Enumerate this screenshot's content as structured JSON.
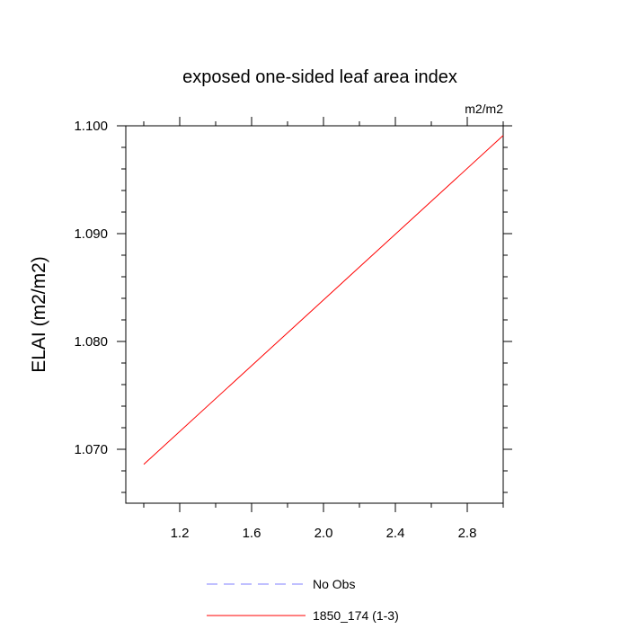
{
  "chart_data": {
    "type": "line",
    "title": "exposed one-sided leaf area index",
    "units_label": "m2/m2",
    "ylabel": "ELAI  (m2/m2)",
    "xlabel": "",
    "xlim": [
      0.9,
      3.0
    ],
    "ylim": [
      1.065,
      1.1
    ],
    "x_major_ticks": [
      1.2,
      1.6,
      2.0,
      2.4,
      2.8
    ],
    "x_tick_labels": [
      "1.2",
      "1.6",
      "2.0",
      "2.4",
      "2.8"
    ],
    "x_minor_ticks": [
      1.0,
      1.4,
      1.8,
      2.2,
      2.6,
      3.0
    ],
    "y_major_ticks": [
      1.07,
      1.08,
      1.09,
      1.1
    ],
    "y_tick_labels": [
      "1.070",
      "1.080",
      "1.090",
      "1.100"
    ],
    "y_minor_step": 0.002,
    "grid": false,
    "legend_position": "bottom",
    "series": [
      {
        "name": "No Obs",
        "x": [],
        "y": [],
        "color": "#8080ff",
        "dash": "dashed"
      },
      {
        "name": "1850_174 (1-3)",
        "x": [
          1.0,
          3.0
        ],
        "y": [
          1.0686,
          1.0991
        ],
        "color": "#ff0000",
        "dash": "solid"
      }
    ]
  }
}
